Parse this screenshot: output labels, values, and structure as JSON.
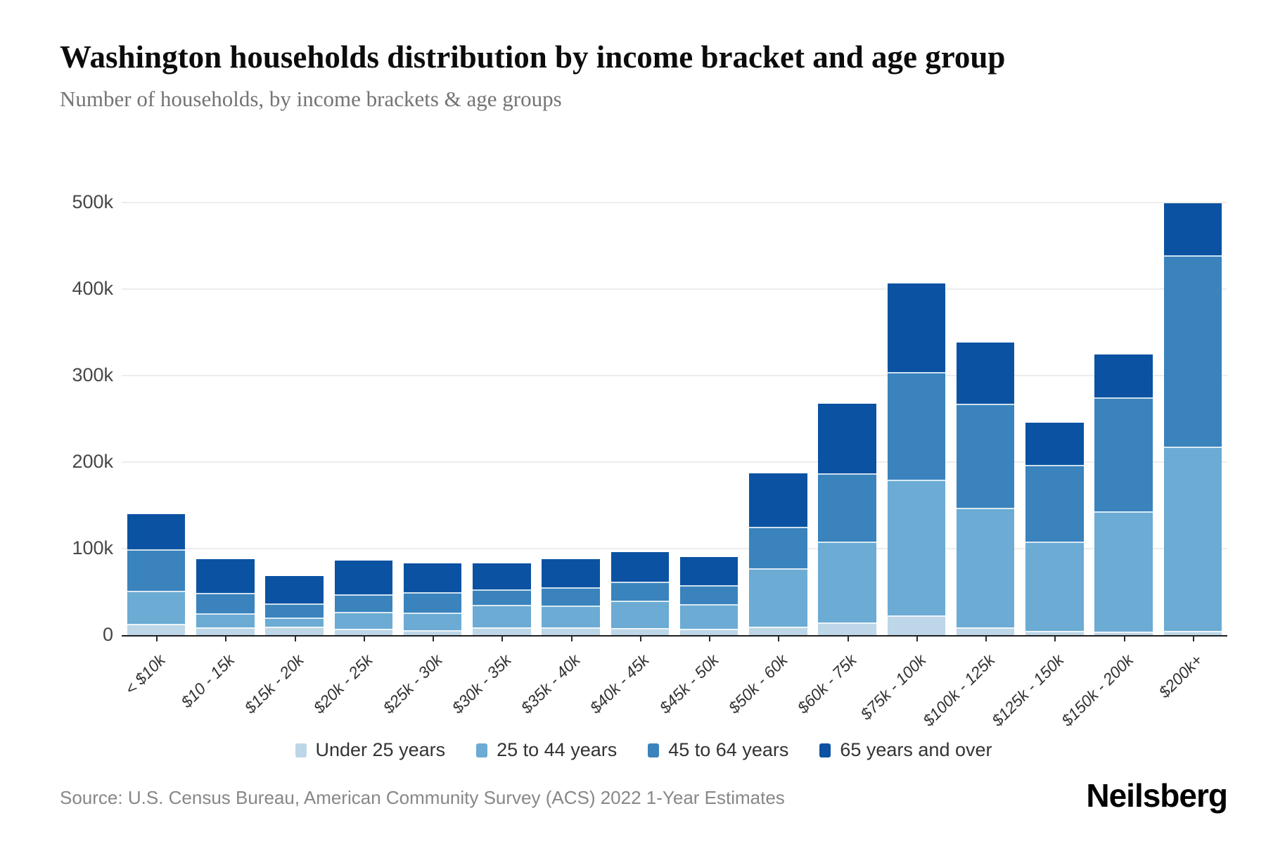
{
  "header": {
    "title": "Washington households distribution by income bracket and age group",
    "subtitle": "Number of households, by income brackets & age groups"
  },
  "footer": {
    "source": "Source: U.S. Census Bureau, American Community Survey (ACS) 2022 1-Year Estimates",
    "brand": "Neilsberg"
  },
  "colors": {
    "under_25": "#bdd6e8",
    "age_25_44": "#6babd4",
    "age_45_64": "#3a83bd",
    "age_65_over": "#0b52a2",
    "gridline": "#ededed",
    "axis": "#1f1f1f"
  },
  "chart_data": {
    "type": "bar",
    "stacked": true,
    "title": "Washington households distribution by income bracket and age group",
    "subtitle": "Number of households, by income brackets & age groups",
    "xlabel": "",
    "ylabel": "Number of households",
    "grid": true,
    "legend_position": "bottom",
    "ylim": [
      0,
      520000
    ],
    "y_ticks": [
      {
        "value": 0,
        "label": "0"
      },
      {
        "value": 100000,
        "label": "100k"
      },
      {
        "value": 200000,
        "label": "200k"
      },
      {
        "value": 300000,
        "label": "300k"
      },
      {
        "value": 400000,
        "label": "400k"
      },
      {
        "value": 500000,
        "label": "500k"
      }
    ],
    "categories": [
      "< $10k",
      "$10 - 15k",
      "$15k - 20k",
      "$20k - 25k",
      "$25k - 30k",
      "$30k - 35k",
      "$35k - 40k",
      "$40k - 45k",
      "$45k - 50k",
      "$50k - 60k",
      "$60k - 75k",
      "$75k - 100k",
      "$100k - 125k",
      "$125k - 150k",
      "$150k - 200k",
      "$200k+"
    ],
    "series": [
      {
        "name": "Under 25 years",
        "color": "#bdd6e8",
        "values": [
          13000,
          9000,
          10000,
          7000,
          6000,
          9000,
          9000,
          8000,
          7000,
          10000,
          15000,
          23000,
          9000,
          5000,
          4000,
          5000
        ]
      },
      {
        "name": "25 to 44 years",
        "color": "#6babd4",
        "values": [
          38000,
          16000,
          10000,
          20000,
          20000,
          26000,
          25000,
          32000,
          29000,
          67000,
          93000,
          157000,
          138000,
          103000,
          139000,
          213000
        ]
      },
      {
        "name": "45 to 64 years",
        "color": "#3a83bd",
        "values": [
          48000,
          24000,
          17000,
          20000,
          24000,
          18000,
          21000,
          22000,
          22000,
          48000,
          79000,
          124000,
          120000,
          89000,
          132000,
          221000
        ]
      },
      {
        "name": "65 years and over",
        "color": "#0b52a2",
        "values": [
          41000,
          39000,
          31000,
          39000,
          33000,
          30000,
          33000,
          34000,
          32000,
          62000,
          80000,
          102000,
          71000,
          48000,
          49000,
          60000
        ]
      }
    ]
  }
}
